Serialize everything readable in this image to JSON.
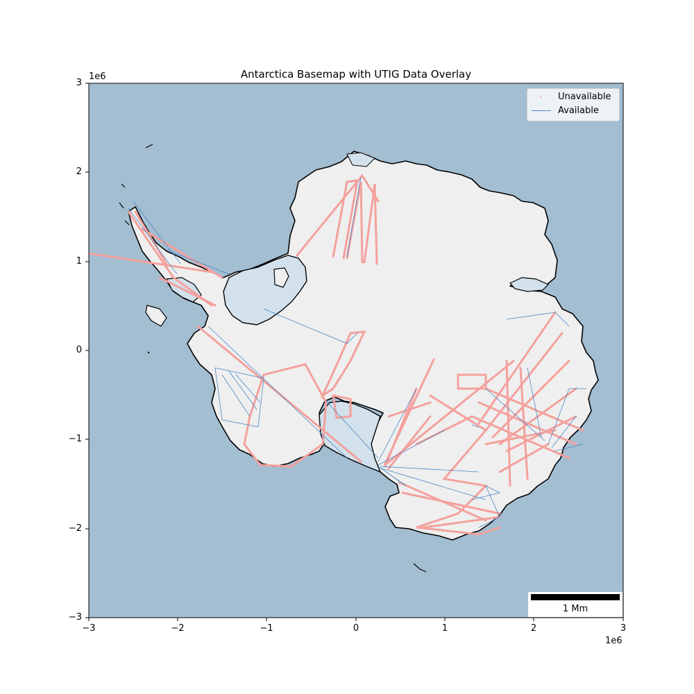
{
  "map": {
    "title": "Antarctica Basemap with UTIG Data Overlay",
    "x_offset_label": "1e6",
    "y_offset_label": "1e6",
    "x_ticks": [
      "−3",
      "−2",
      "−1",
      "0",
      "1",
      "2",
      "3"
    ],
    "y_ticks": [
      "3",
      "2",
      "1",
      "0",
      "−1",
      "−2",
      "−3"
    ],
    "x_range": [
      -3000000,
      3000000
    ],
    "y_range": [
      -3000000,
      3000000
    ],
    "legend": {
      "placement": "top-right",
      "items": [
        {
          "label": "Unavailable",
          "color": "#f4a09c",
          "icon": "dot-marker"
        },
        {
          "label": "Available",
          "color": "#4a86c5",
          "icon": "line-marker"
        }
      ]
    },
    "scalebar": {
      "label": "1 Mm",
      "length_units": 1000000
    },
    "colors": {
      "ocean": "#a3bdd1",
      "land": "#efefef",
      "ice_shelf": "#d2e1ec",
      "coastline": "#000000",
      "unavailable": "#f4a09c",
      "available": "#4a86c5"
    }
  }
}
